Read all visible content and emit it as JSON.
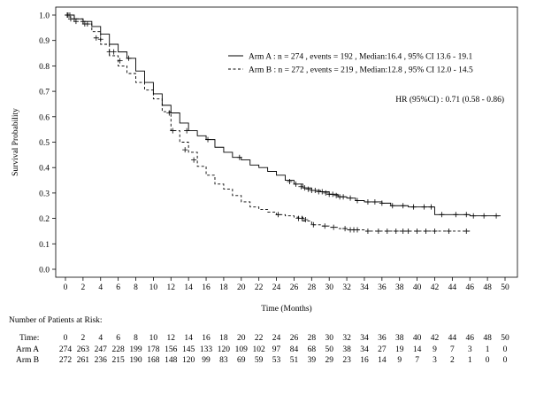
{
  "chart_data": {
    "type": "line",
    "subtype": "kaplan-meier",
    "xlabel": "Time (Months)",
    "ylabel": "Survival Probability",
    "xlim": [
      0,
      50
    ],
    "ylim": [
      0,
      1.0
    ],
    "xticks": [
      0,
      2,
      4,
      6,
      8,
      10,
      12,
      14,
      16,
      18,
      20,
      22,
      24,
      26,
      28,
      30,
      32,
      34,
      36,
      38,
      40,
      42,
      44,
      46,
      48,
      50
    ],
    "yticks": [
      0.0,
      0.1,
      0.2,
      0.3,
      0.4,
      0.5,
      0.6,
      0.7,
      0.8,
      0.9,
      1.0
    ],
    "grid": false,
    "legend_position": "top-right",
    "hr_text": "HR (95%CI) : 0.71 (0.58 - 0.86)",
    "series": [
      {
        "name": "Arm A : n = 274 , events = 192 , Median:16.4 , 95% CI 13.6 - 19.1",
        "line_style": "solid",
        "x": [
          0,
          1,
          2,
          3,
          4,
          5,
          6,
          7,
          8,
          9,
          10,
          11,
          12,
          13,
          14,
          15,
          16,
          17,
          18,
          19,
          20,
          21,
          22,
          23,
          24,
          25,
          26,
          27,
          28,
          29,
          30,
          31,
          32,
          33,
          34,
          35,
          36,
          37,
          38,
          39,
          40,
          41,
          42,
          43,
          44,
          45,
          46,
          47,
          48,
          49.5
        ],
        "y": [
          1.0,
          0.985,
          0.975,
          0.955,
          0.925,
          0.885,
          0.855,
          0.83,
          0.78,
          0.735,
          0.69,
          0.645,
          0.615,
          0.575,
          0.545,
          0.525,
          0.51,
          0.48,
          0.46,
          0.44,
          0.43,
          0.41,
          0.4,
          0.385,
          0.37,
          0.35,
          0.335,
          0.32,
          0.31,
          0.305,
          0.295,
          0.285,
          0.28,
          0.27,
          0.265,
          0.265,
          0.26,
          0.25,
          0.25,
          0.245,
          0.245,
          0.245,
          0.215,
          0.215,
          0.215,
          0.215,
          0.21,
          0.21,
          0.21,
          0.21
        ],
        "censor_x": [
          0.2,
          0.5,
          1.0,
          2.0,
          2.5,
          4.0,
          5.5,
          7.2,
          11.8,
          13.8,
          16.2,
          19.8,
          25.5,
          26.2,
          26.8,
          27.2,
          27.6,
          28.0,
          28.4,
          28.8,
          29.2,
          29.6,
          30.0,
          30.4,
          30.8,
          31.2,
          31.6,
          32.4,
          33.2,
          34.4,
          35.2,
          36.0,
          37.2,
          38.4,
          39.6,
          40.8,
          41.6,
          42.8,
          44.4,
          45.6,
          46.4,
          47.6,
          49.0
        ],
        "censor_y": [
          1.0,
          1.0,
          0.985,
          0.975,
          0.965,
          0.905,
          0.855,
          0.83,
          0.615,
          0.545,
          0.51,
          0.44,
          0.345,
          0.335,
          0.325,
          0.32,
          0.315,
          0.31,
          0.31,
          0.305,
          0.305,
          0.3,
          0.295,
          0.295,
          0.29,
          0.285,
          0.285,
          0.28,
          0.27,
          0.265,
          0.265,
          0.26,
          0.25,
          0.25,
          0.245,
          0.245,
          0.245,
          0.215,
          0.215,
          0.215,
          0.21,
          0.21,
          0.21
        ]
      },
      {
        "name": "Arm B : n = 272 , events = 219 , Median:12.8 , 95% CI 12.0 - 14.5",
        "line_style": "dashed",
        "x": [
          0,
          1,
          2,
          3,
          4,
          5,
          6,
          7,
          8,
          9,
          10,
          11,
          12,
          13,
          14,
          15,
          16,
          17,
          18,
          19,
          20,
          21,
          22,
          23,
          24,
          25,
          26,
          27,
          28,
          29,
          30,
          31,
          32,
          33,
          34,
          35,
          36,
          37,
          38,
          39,
          40,
          41,
          42,
          43,
          44,
          45,
          46
        ],
        "y": [
          1.0,
          0.985,
          0.965,
          0.935,
          0.885,
          0.84,
          0.8,
          0.77,
          0.735,
          0.705,
          0.67,
          0.62,
          0.545,
          0.5,
          0.46,
          0.405,
          0.37,
          0.335,
          0.315,
          0.29,
          0.265,
          0.245,
          0.235,
          0.225,
          0.215,
          0.21,
          0.205,
          0.19,
          0.175,
          0.17,
          0.165,
          0.16,
          0.155,
          0.155,
          0.15,
          0.15,
          0.15,
          0.15,
          0.15,
          0.15,
          0.15,
          0.15,
          0.15,
          0.15,
          0.15,
          0.15,
          0.15
        ],
        "censor_x": [
          0.3,
          0.6,
          1.2,
          2.2,
          3.5,
          5.0,
          6.2,
          12.2,
          13.6,
          14.6,
          24.2,
          26.5,
          26.9,
          27.3,
          28.2,
          29.5,
          30.5,
          31.8,
          32.4,
          32.8,
          33.2,
          34.4,
          35.6,
          36.6,
          37.6,
          38.4,
          39.0,
          40.0,
          41.0,
          42.0,
          43.6,
          45.6
        ],
        "censor_y": [
          1.0,
          0.985,
          0.975,
          0.965,
          0.91,
          0.855,
          0.82,
          0.545,
          0.47,
          0.43,
          0.215,
          0.2,
          0.2,
          0.195,
          0.175,
          0.17,
          0.165,
          0.16,
          0.155,
          0.155,
          0.155,
          0.15,
          0.15,
          0.15,
          0.15,
          0.15,
          0.15,
          0.15,
          0.15,
          0.15,
          0.15,
          0.15
        ]
      }
    ],
    "risk_table": {
      "title": "Number of Patients at Risk:",
      "time_label": "Time:",
      "times": [
        0,
        2,
        4,
        6,
        8,
        10,
        12,
        14,
        16,
        18,
        20,
        22,
        24,
        26,
        28,
        30,
        32,
        34,
        36,
        38,
        40,
        42,
        44,
        46,
        48,
        50
      ],
      "rows": [
        {
          "label": "Arm A",
          "values": [
            274,
            263,
            247,
            228,
            199,
            178,
            156,
            145,
            133,
            120,
            109,
            102,
            97,
            84,
            68,
            50,
            38,
            34,
            27,
            19,
            14,
            9,
            7,
            3,
            1,
            0
          ]
        },
        {
          "label": "Arm B",
          "values": [
            272,
            261,
            236,
            215,
            190,
            168,
            148,
            120,
            99,
            83,
            69,
            59,
            53,
            51,
            39,
            29,
            23,
            16,
            14,
            9,
            7,
            3,
            2,
            1,
            0,
            0
          ]
        }
      ]
    }
  }
}
